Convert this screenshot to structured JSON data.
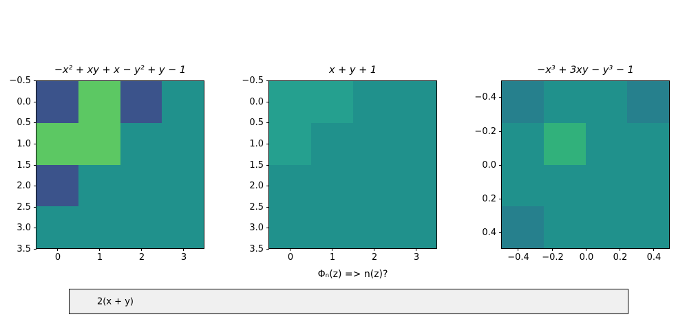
{
  "figure": {
    "background": "#ffffff"
  },
  "palette": {
    "teal": "#20918c",
    "blue": "#3b538b",
    "green": "#5cc863",
    "teal_light": "#25a08f",
    "teal_dark": "#26808d",
    "green_mid": "#31b17b"
  },
  "chart_data": [
    {
      "type": "heatmap",
      "title": "−x² + xy + x − y² + y − 1",
      "x_range": [
        -0.5,
        3.5
      ],
      "y_range": [
        -0.5,
        3.5
      ],
      "x_ticks": [
        "0",
        "1",
        "2",
        "3"
      ],
      "y_ticks": [
        "−0.5",
        "0.0",
        "0.5",
        "1.0",
        "1.5",
        "2.0",
        "2.5",
        "3.0",
        "3.5"
      ],
      "grid": "off",
      "legend": "none",
      "cells": [
        [
          "blue",
          "green",
          "blue",
          "teal"
        ],
        [
          "green",
          "green",
          "teal",
          "teal"
        ],
        [
          "blue",
          "teal",
          "teal",
          "teal"
        ],
        [
          "teal",
          "teal",
          "teal",
          "teal"
        ]
      ]
    },
    {
      "type": "heatmap",
      "title": "x + y + 1",
      "xlabel": "Φₙ(z) => n(z)?",
      "x_range": [
        -0.5,
        3.5
      ],
      "y_range": [
        -0.5,
        3.5
      ],
      "x_ticks": [
        "0",
        "1",
        "2",
        "3"
      ],
      "y_ticks": [
        "−0.5",
        "0.0",
        "0.5",
        "1.0",
        "1.5",
        "2.0",
        "2.5",
        "3.0",
        "3.5"
      ],
      "grid": "off",
      "legend": "none",
      "cells": [
        [
          "teal_light",
          "teal_light",
          "teal",
          "teal"
        ],
        [
          "teal_light",
          "teal",
          "teal",
          "teal"
        ],
        [
          "teal",
          "teal",
          "teal",
          "teal"
        ],
        [
          "teal",
          "teal",
          "teal",
          "teal"
        ]
      ]
    },
    {
      "type": "heatmap",
      "title": "−x³ + 3xy − y³ − 1",
      "x_range": [
        -0.5,
        0.5
      ],
      "y_range": [
        -0.5,
        0.5
      ],
      "x_ticks": [
        "−0.4",
        "−0.2",
        "0.0",
        "0.2",
        "0.4"
      ],
      "y_ticks": [
        "−0.4",
        "−0.2",
        "0.0",
        "0.2",
        "0.4"
      ],
      "grid": "off",
      "legend": "none",
      "cells": [
        [
          "teal_dark",
          "teal",
          "teal",
          "teal_dark"
        ],
        [
          "teal",
          "green_mid",
          "teal",
          "teal"
        ],
        [
          "teal",
          "teal",
          "teal",
          "teal"
        ],
        [
          "teal_dark",
          "teal",
          "teal",
          "teal"
        ]
      ]
    }
  ],
  "textbox": {
    "value": "2(x + y)",
    "background": "#f0f0f0"
  }
}
